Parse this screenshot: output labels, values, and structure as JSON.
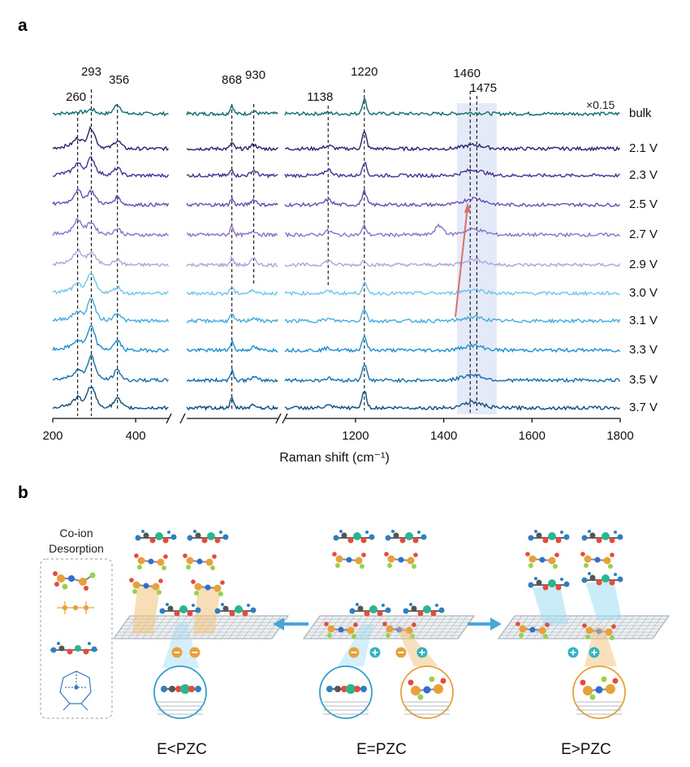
{
  "panel_a": {
    "label": "a",
    "chart_data": {
      "type": "line",
      "title": "",
      "xlabel": "Raman shift (cm⁻¹)",
      "ylabel": "",
      "x_tick_labels": [
        "200",
        "400",
        "1200",
        "1400",
        "1600",
        "1800"
      ],
      "x_ticks": [
        200,
        400,
        1200,
        1400,
        1600,
        1800
      ],
      "x_segments": [
        [
          200,
          480
        ],
        [
          740,
          1000
        ],
        [
          1040,
          1800
        ]
      ],
      "peak_labels": [
        "260",
        "293",
        "356",
        "868",
        "930",
        "1138",
        "1220",
        "1460",
        "1475"
      ],
      "peaks": [
        260,
        293,
        356,
        868,
        930,
        1138,
        1220,
        1460,
        1475
      ],
      "highlight_region": [
        1430,
        1520
      ],
      "scale_annotation": "×0.15",
      "series": [
        {
          "name": "bulk",
          "color": "#0f6b6b",
          "peak_heights": {
            "260": 0.1,
            "293": 0.35,
            "356": 0.9,
            "868": 0.85,
            "930": 0.2,
            "1138": 0.1,
            "1220": 1.5,
            "1460": 0.05,
            "1475": 0.05
          }
        },
        {
          "name": "2.1 V",
          "color": "#2e1f6e",
          "peak_heights": {
            "260": 0.6,
            "293": 1.7,
            "356": 0.8,
            "868": 0.6,
            "930": 0.4,
            "1138": 0.3,
            "1220": 1.7,
            "1460": 0.2,
            "1475": 0.2
          }
        },
        {
          "name": "2.3 V",
          "color": "#4a2f96",
          "peak_heights": {
            "260": 0.8,
            "293": 1.4,
            "356": 0.7,
            "868": 0.6,
            "930": 0.5,
            "1138": 0.6,
            "1220": 1.4,
            "1460": 0.3,
            "1475": 0.3
          }
        },
        {
          "name": "2.5 V",
          "color": "#6a4bb4",
          "peak_heights": {
            "260": 1.0,
            "293": 1.0,
            "356": 0.7,
            "868": 0.6,
            "930": 0.5,
            "1138": 0.5,
            "1220": 1.4,
            "1460": 0.3,
            "1475": 0.4
          }
        },
        {
          "name": "2.7 V",
          "color": "#8c70c9",
          "peak_heights": {
            "260": 1.1,
            "293": 0.9,
            "356": 0.6,
            "868": 0.9,
            "930": 0.4,
            "1138": 0.4,
            "1220": 0.9,
            "1460": 0.3,
            "1475": 0.3
          }
        },
        {
          "name": "2.9 V",
          "color": "#b3a1dc",
          "peak_heights": {
            "260": 1.0,
            "293": 0.9,
            "356": 0.5,
            "868": 0.7,
            "930": 0.6,
            "1138": 0.4,
            "1220": 0.5,
            "1460": 0.3,
            "1475": 0.3
          }
        },
        {
          "name": "3.0 V",
          "color": "#6fc6ea",
          "peak_heights": {
            "260": 0.5,
            "293": 1.6,
            "356": 0.6,
            "868": 0.7,
            "930": 0.3,
            "1138": 0.2,
            "1220": 1.1,
            "1460": 0.2,
            "1475": 0.2
          }
        },
        {
          "name": "3.1 V",
          "color": "#42acdf",
          "peak_heights": {
            "260": 0.5,
            "293": 1.9,
            "356": 0.8,
            "868": 0.7,
            "930": 0.3,
            "1138": 0.2,
            "1220": 1.3,
            "1460": 0.2,
            "1475": 0.2
          }
        },
        {
          "name": "3.3 V",
          "color": "#1b8fd0",
          "peak_heights": {
            "260": 0.6,
            "293": 2.0,
            "356": 0.9,
            "868": 0.9,
            "930": 0.3,
            "1138": 0.2,
            "1220": 1.5,
            "1460": 0.3,
            "1475": 0.2
          }
        },
        {
          "name": "3.5 V",
          "color": "#126fae",
          "peak_heights": {
            "260": 0.6,
            "293": 2.1,
            "356": 1.0,
            "868": 1.0,
            "930": 0.3,
            "1138": 0.2,
            "1220": 1.7,
            "1460": 0.4,
            "1475": 0.2
          }
        },
        {
          "name": "3.7 V",
          "color": "#0b4f82",
          "peak_heights": {
            "260": 0.6,
            "293": 1.9,
            "356": 0.9,
            "868": 0.9,
            "930": 0.3,
            "1138": 0.2,
            "1220": 1.8,
            "1460": 0.4,
            "1475": 0.2
          }
        }
      ]
    }
  },
  "panel_b": {
    "label": "b",
    "legend_title_line1": "Co-ion",
    "legend_title_line2": "Desorption",
    "condition_labels": [
      "E<PZC",
      "E=PZC",
      "E>PZC"
    ],
    "colors": {
      "graphene": "#9aa3ab",
      "anion": "#e7a13a",
      "cation": "#2f9fc9",
      "ether": "#3a78c2",
      "highlight_orange": "#f2c27a",
      "highlight_blue": "#9fdcf2",
      "arrow": "#4aa6d9"
    }
  }
}
